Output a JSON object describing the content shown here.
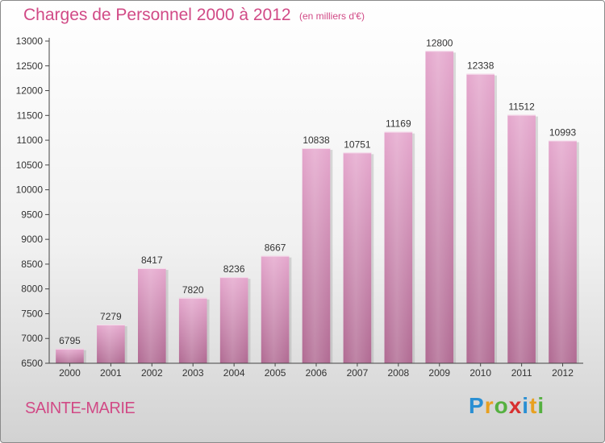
{
  "title": "Charges de Personnel 2000 à 2012",
  "unit_note": "(en milliers d'€)",
  "commune": "SAINTE-MARIE",
  "logo": {
    "letters": [
      "P",
      "r",
      "o",
      "x",
      "i",
      "t",
      "i"
    ],
    "colors": [
      "#2a8fd3",
      "#e8a020",
      "#55b040",
      "#d83030",
      "#2a8fd3",
      "#e8a020",
      "#55b040"
    ]
  },
  "colors": {
    "accent": "#d14a86",
    "bar_top": "#e5a7cd",
    "bar_bottom": "#b06a92",
    "axis": "#444444"
  },
  "chart_data": {
    "type": "bar",
    "title": "Charges de Personnel 2000 à 2012",
    "ylabel": "",
    "xlabel": "",
    "categories": [
      "2000",
      "2001",
      "2002",
      "2003",
      "2004",
      "2005",
      "2006",
      "2007",
      "2008",
      "2009",
      "2010",
      "2011",
      "2012"
    ],
    "values": [
      6795,
      7279,
      8417,
      7820,
      8236,
      8667,
      10838,
      10751,
      11169,
      12800,
      12338,
      11512,
      10993
    ],
    "ylim": [
      6500,
      13000
    ],
    "yticks": [
      6500,
      7000,
      7500,
      8000,
      8500,
      9000,
      9500,
      10000,
      10500,
      11000,
      11500,
      12000,
      12500,
      13000
    ],
    "grid": false,
    "legend": "none"
  }
}
